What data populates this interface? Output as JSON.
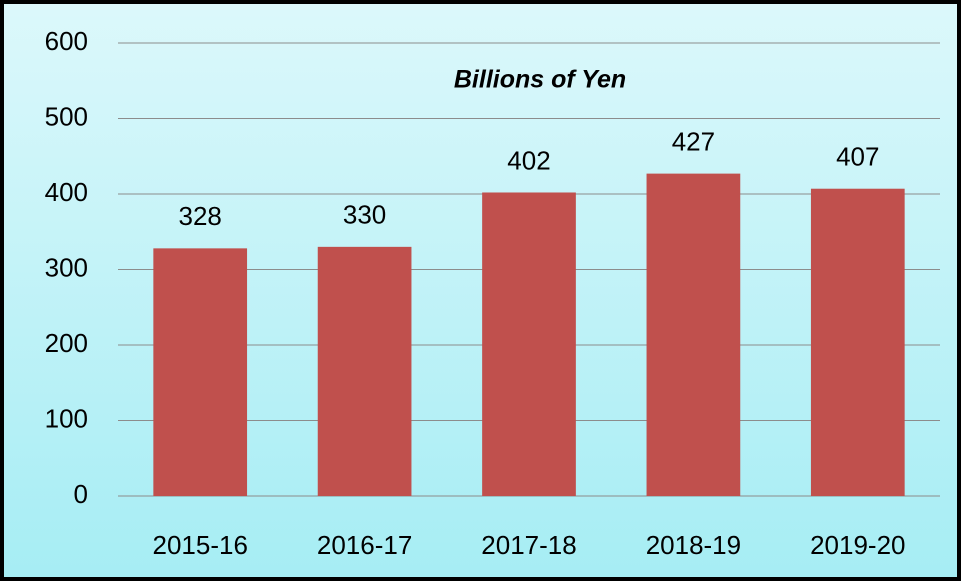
{
  "chart_data": {
    "type": "bar",
    "title": "Billions of Yen",
    "categories": [
      "2015-16",
      "2016-17",
      "2017-18",
      "2018-19",
      "2019-20"
    ],
    "values": [
      328,
      330,
      402,
      427,
      407
    ],
    "color": "#c0504d",
    "ylim": [
      0,
      600
    ],
    "yticks": [
      0,
      100,
      200,
      300,
      400,
      500,
      600
    ],
    "grid": true
  }
}
